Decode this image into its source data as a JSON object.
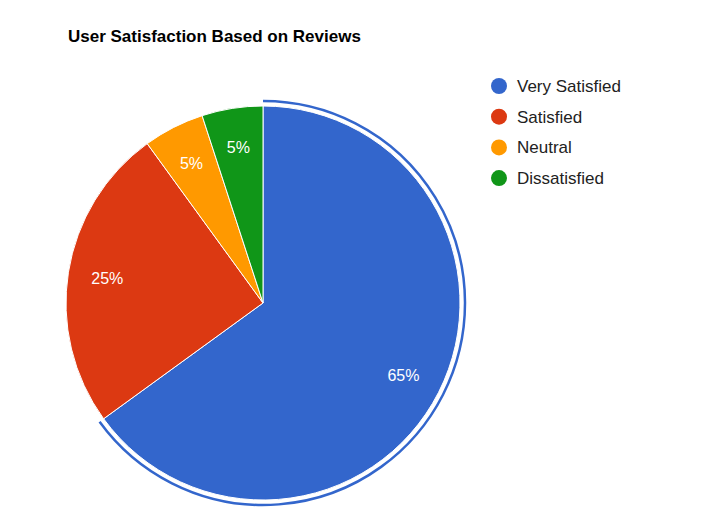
{
  "chart_data": {
    "type": "pie",
    "title": "User Satisfaction Based on Reviews",
    "categories": [
      "Very Satisfied",
      "Satisfied",
      "Neutral",
      "Dissatisfied"
    ],
    "values": [
      65,
      25,
      5,
      5
    ],
    "value_labels": [
      "65%",
      "25%",
      "5%",
      "5%"
    ],
    "colors": [
      "#3366cc",
      "#dc3912",
      "#ff9900",
      "#109618"
    ],
    "data_labels": true,
    "legend": "right"
  }
}
